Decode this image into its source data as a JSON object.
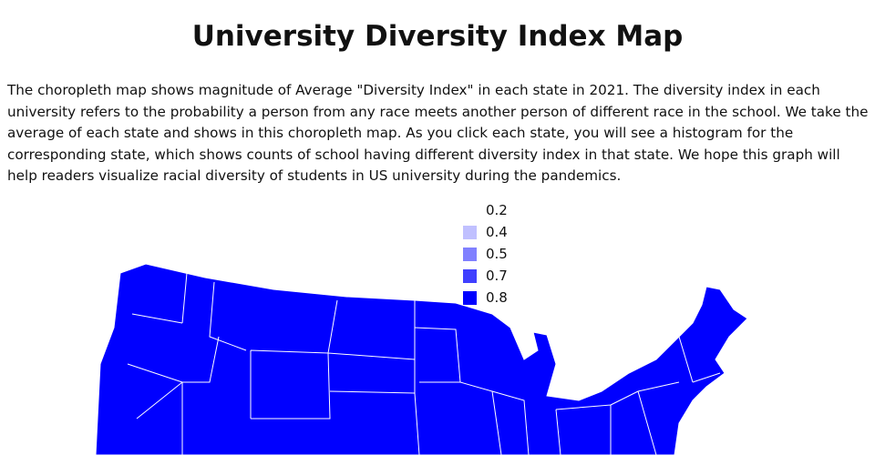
{
  "title": "University Diversity Index Map",
  "description": "The choropleth map shows magnitude of Average \"Diversity Index\" in each state in 2021. The diversity index in each university refers to the probability a person from any race meets another person of different race in the school. We take the average of each state and shows in this choropleth map. As you click each state, you will see a histogram for the corresponding state, which shows counts of school having different diversity index in that state. We hope this graph will help readers visualize racial diversity of students in US university during the pandemics.",
  "legend": [
    {
      "label": "0.2",
      "color": "#ffffff"
    },
    {
      "label": "0.4",
      "color": "#c0c0ff"
    },
    {
      "label": "0.5",
      "color": "#8080ff"
    },
    {
      "label": "0.7",
      "color": "#4040ff"
    },
    {
      "label": "0.8",
      "color": "#0000ff"
    }
  ],
  "map_fill": "#0000ff"
}
